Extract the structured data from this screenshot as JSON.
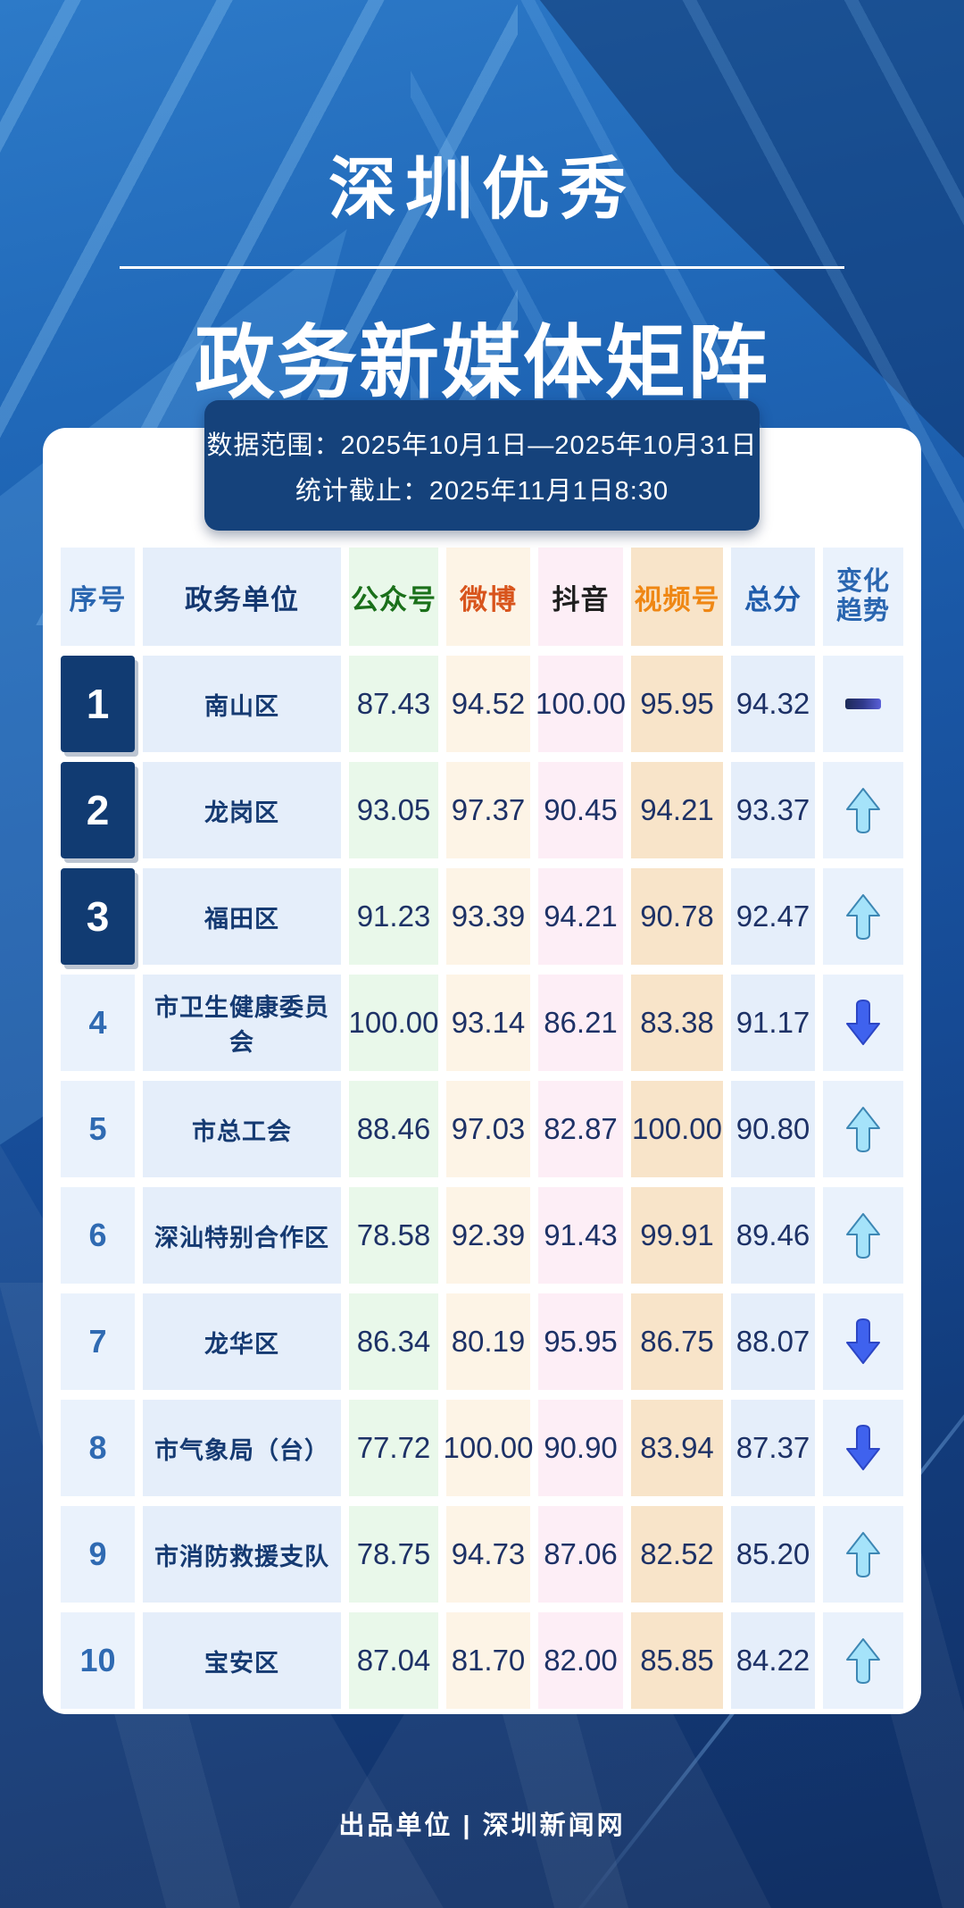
{
  "title": {
    "line1": "深圳优秀",
    "line2": "政务新媒体矩阵"
  },
  "meta": {
    "range": "数据范围：2025年10月1日—2025年10月31日",
    "cutoff": "统计截止：2025年11月1日8:30"
  },
  "table": {
    "headers": [
      "序号",
      "政务单位",
      "公众号",
      "微博",
      "抖音",
      "视频号",
      "总分",
      "变化\n趋势"
    ],
    "header_colors": [
      "#2a66b0",
      "#133770",
      "#1a701a",
      "#d8541c",
      "#1f1f1f",
      "#ef8714",
      "#1f5cab",
      "#2a66b0"
    ],
    "rows": [
      {
        "rank": "1",
        "unit": "南山区",
        "scores": [
          "87.43",
          "94.52",
          "100.00",
          "95.95",
          "94.32"
        ],
        "trend": "flat"
      },
      {
        "rank": "2",
        "unit": "龙岗区",
        "scores": [
          "93.05",
          "97.37",
          "90.45",
          "94.21",
          "93.37"
        ],
        "trend": "up"
      },
      {
        "rank": "3",
        "unit": "福田区",
        "scores": [
          "91.23",
          "93.39",
          "94.21",
          "90.78",
          "92.47"
        ],
        "trend": "up"
      },
      {
        "rank": "4",
        "unit": "市卫生健康委员会",
        "scores": [
          "100.00",
          "93.14",
          "86.21",
          "83.38",
          "91.17"
        ],
        "trend": "down"
      },
      {
        "rank": "5",
        "unit": "市总工会",
        "scores": [
          "88.46",
          "97.03",
          "82.87",
          "100.00",
          "90.80"
        ],
        "trend": "up"
      },
      {
        "rank": "6",
        "unit": "深汕特别合作区",
        "scores": [
          "78.58",
          "92.39",
          "91.43",
          "99.91",
          "89.46"
        ],
        "trend": "up"
      },
      {
        "rank": "7",
        "unit": "龙华区",
        "scores": [
          "86.34",
          "80.19",
          "95.95",
          "86.75",
          "88.07"
        ],
        "trend": "down"
      },
      {
        "rank": "8",
        "unit": "市气象局（台）",
        "scores": [
          "77.72",
          "100.00",
          "90.90",
          "83.94",
          "87.37"
        ],
        "trend": "down"
      },
      {
        "rank": "9",
        "unit": "市消防救援支队",
        "scores": [
          "78.75",
          "94.73",
          "87.06",
          "82.52",
          "85.20"
        ],
        "trend": "up"
      },
      {
        "rank": "10",
        "unit": "宝安区",
        "scores": [
          "87.04",
          "81.70",
          "82.00",
          "85.85",
          "84.22"
        ],
        "trend": "up"
      }
    ]
  },
  "footer": {
    "credit": "出品单位 | 深圳新闻网"
  },
  "colors": {
    "background_top": "#2d7ac8",
    "background_bottom": "#112f63",
    "meta_box": "#15427b",
    "card": "#ffffff",
    "rank_top_badge": "#113b72",
    "wechat_green": "#1a701a",
    "weibo_orange": "#d8541c",
    "douyin_black": "#1f1f1f",
    "shipinhao_orange": "#ef8714",
    "score_text": "#1d3166",
    "up_arrow": "#a5e3fa",
    "down_arrow": "#3f62ee"
  },
  "chart_data": {
    "type": "table",
    "title": "深圳优秀政务新媒体矩阵",
    "subtitle_range": "2025年10月1日—2025年10月31日",
    "columns": [
      "序号",
      "政务单位",
      "公众号",
      "微博",
      "抖音",
      "视频号",
      "总分",
      "变化趋势"
    ],
    "rows": [
      [
        1,
        "南山区",
        87.43,
        94.52,
        100.0,
        95.95,
        94.32,
        "flat"
      ],
      [
        2,
        "龙岗区",
        93.05,
        97.37,
        90.45,
        94.21,
        93.37,
        "up"
      ],
      [
        3,
        "福田区",
        91.23,
        93.39,
        94.21,
        90.78,
        92.47,
        "up"
      ],
      [
        4,
        "市卫生健康委员会",
        100.0,
        93.14,
        86.21,
        83.38,
        91.17,
        "down"
      ],
      [
        5,
        "市总工会",
        88.46,
        97.03,
        82.87,
        100.0,
        90.8,
        "up"
      ],
      [
        6,
        "深汕特别合作区",
        78.58,
        92.39,
        91.43,
        99.91,
        89.46,
        "up"
      ],
      [
        7,
        "龙华区",
        86.34,
        80.19,
        95.95,
        86.75,
        88.07,
        "down"
      ],
      [
        8,
        "市气象局（台）",
        77.72,
        100.0,
        90.9,
        83.94,
        87.37,
        "down"
      ],
      [
        9,
        "市消防救援支队",
        78.75,
        94.73,
        87.06,
        82.52,
        85.2,
        "up"
      ],
      [
        10,
        "宝安区",
        87.04,
        81.7,
        82.0,
        85.85,
        84.22,
        "up"
      ]
    ]
  }
}
